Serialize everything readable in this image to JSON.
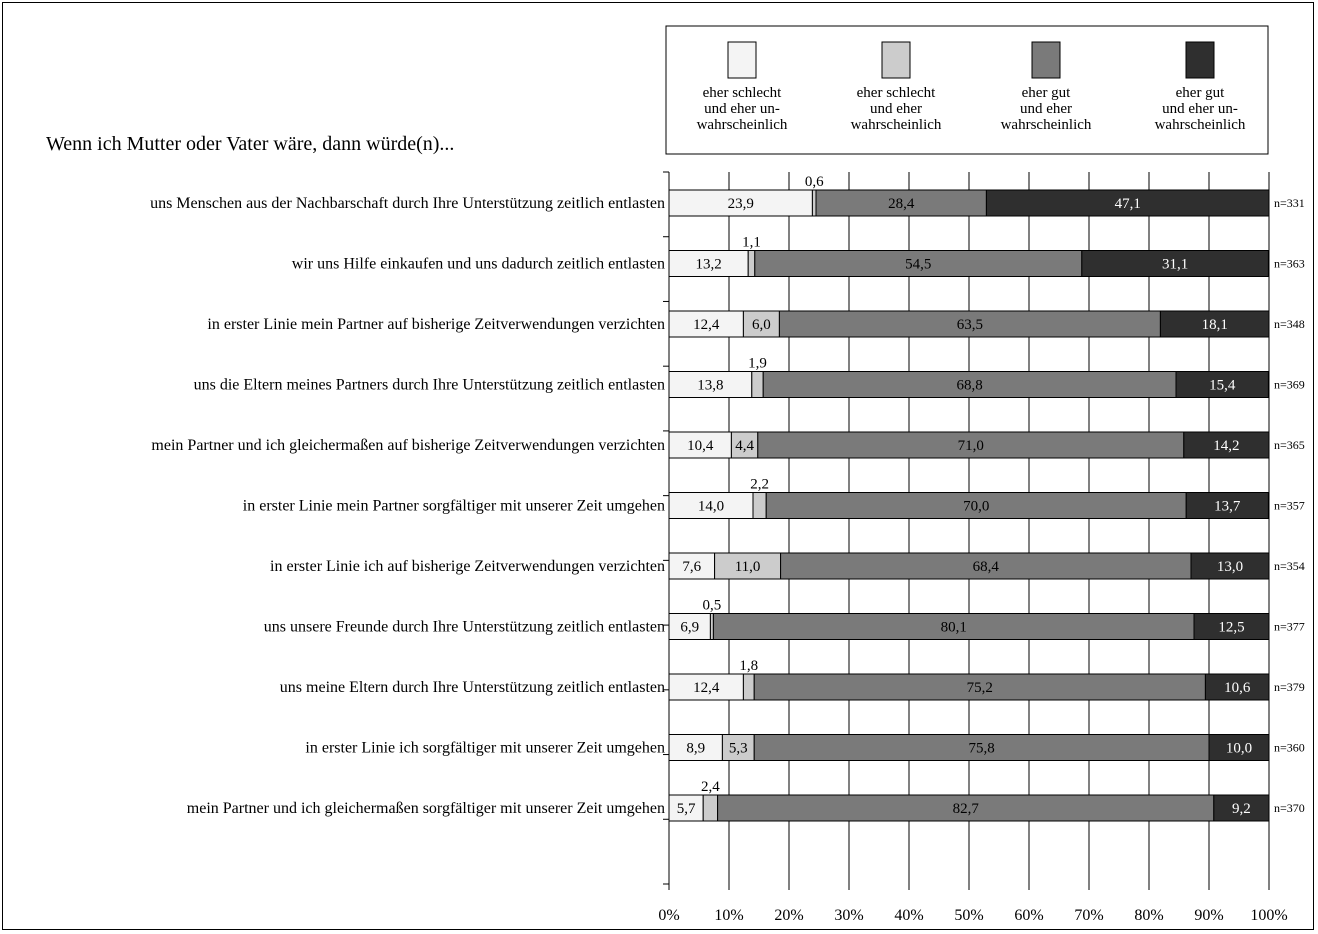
{
  "chart_data": {
    "type": "bar",
    "stacked": true,
    "orientation": "horizontal",
    "title": "Wenn ich Mutter oder Vater wäre, dann würde(n)...",
    "xlim": [
      0,
      100
    ],
    "x_ticks": [
      "0%",
      "10%",
      "20%",
      "30%",
      "40%",
      "50%",
      "60%",
      "70%",
      "80%",
      "90%",
      "100%"
    ],
    "grid": true,
    "legend_position": "top-right",
    "categories": [
      "uns Menschen aus der Nachbarschaft durch Ihre Unterstützung zeitlich entlasten",
      "wir uns Hilfe einkaufen und uns dadurch zeitlich entlasten",
      "in erster Linie mein Partner auf bisherige Zeitverwendungen verzichten",
      "uns die Eltern meines Partners durch Ihre Unterstützung zeitlich entlasten",
      "mein Partner und ich gleichermaßen auf bisherige Zeitverwendungen verzichten",
      "in erster Linie mein Partner sorgfältiger mit unserer Zeit umgehen",
      "in erster Linie ich auf bisherige Zeitverwendungen verzichten",
      "uns unsere Freunde durch Ihre Unterstützung zeitlich entlasten",
      "uns meine Eltern durch Ihre Unterstützung zeitlich entlasten",
      "in erster Linie ich sorgfältiger mit unserer Zeit umgehen",
      "mein Partner und ich gleichermaßen sorgfältiger mit unserer Zeit umgehen"
    ],
    "n_labels": [
      "n=331",
      "n=363",
      "n=348",
      "n=369",
      "n=365",
      "n=357",
      "n=354",
      "n=377",
      "n=379",
      "n=360",
      "n=370"
    ],
    "series": [
      {
        "name": "eher schlecht und eher un-wahrscheinlich",
        "legend_lines": [
          "eher schlecht",
          "und eher un-",
          "wahrscheinlich"
        ],
        "color": "#f4f4f4",
        "text_color": "#000000",
        "values": [
          23.9,
          13.2,
          12.4,
          13.8,
          10.4,
          14.0,
          7.6,
          6.9,
          12.4,
          8.9,
          5.7
        ],
        "labels": [
          "23,9",
          "13,2",
          "12,4",
          "13,8",
          "10,4",
          "14,0",
          "7,6",
          "6,9",
          "12,4",
          "8,9",
          "5,7"
        ]
      },
      {
        "name": "eher schlecht und eher wahrscheinlich",
        "legend_lines": [
          "eher schlecht",
          "und eher",
          "wahrscheinlich"
        ],
        "color": "#cccccc",
        "text_color": "#000000",
        "values": [
          0.6,
          1.1,
          6.0,
          1.9,
          4.4,
          2.2,
          11.0,
          0.5,
          1.8,
          5.3,
          2.4
        ],
        "labels": [
          "0,6",
          "1,1",
          "6,0",
          "1,9",
          "4,4",
          "2,2",
          "11,0",
          "0,5",
          "1,8",
          "5,3",
          "2,4"
        ],
        "label_above": [
          true,
          true,
          false,
          true,
          false,
          true,
          false,
          true,
          true,
          false,
          true
        ]
      },
      {
        "name": "eher gut und eher wahrscheinlich",
        "legend_lines": [
          "eher gut",
          "und eher",
          "wahrscheinlich"
        ],
        "color": "#7a7a7a",
        "text_color": "#000000",
        "values": [
          28.4,
          54.5,
          63.5,
          68.8,
          71.0,
          70.0,
          68.4,
          80.1,
          75.2,
          75.8,
          82.7
        ],
        "labels": [
          "28,4",
          "54,5",
          "63,5",
          "68,8",
          "71,0",
          "70,0",
          "68,4",
          "80,1",
          "75,2",
          "75,8",
          "82,7"
        ]
      },
      {
        "name": "eher gut und eher un-wahrscheinlich",
        "legend_lines": [
          "eher gut",
          "und eher un-",
          "wahrscheinlich"
        ],
        "color": "#2f2f2f",
        "text_color": "#ffffff",
        "values": [
          47.1,
          31.1,
          18.1,
          15.4,
          14.2,
          13.7,
          13.0,
          12.5,
          10.6,
          10.0,
          9.2
        ],
        "labels": [
          "47,1",
          "31,1",
          "18,1",
          "15,4",
          "14,2",
          "13,7",
          "13,0",
          "12,5",
          "10,6",
          "10,0",
          "9,2"
        ]
      }
    ]
  }
}
